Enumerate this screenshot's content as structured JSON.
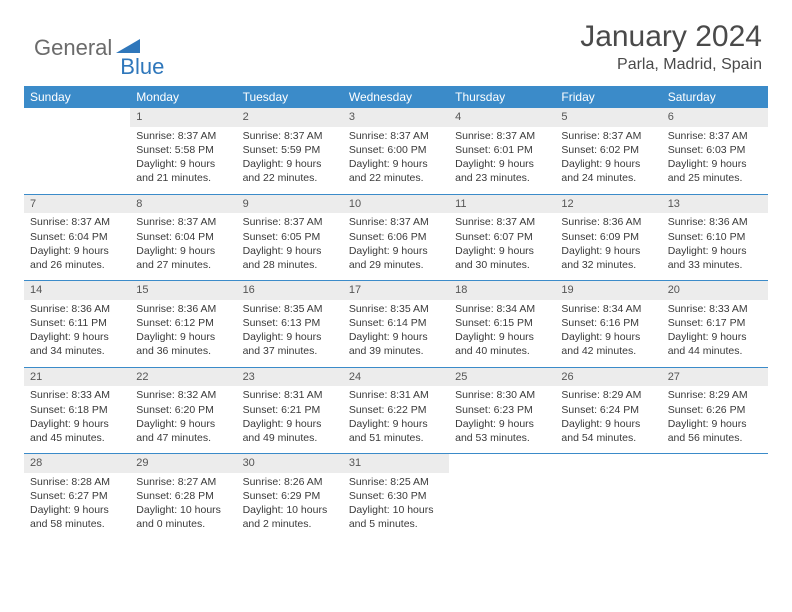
{
  "logo": {
    "general": "General",
    "blue": "Blue"
  },
  "title": "January 2024",
  "location": "Parla, Madrid, Spain",
  "weekdays": [
    "Sunday",
    "Monday",
    "Tuesday",
    "Wednesday",
    "Thursday",
    "Friday",
    "Saturday"
  ],
  "colors": {
    "header_bg": "#3b8bc9",
    "header_text": "#ffffff",
    "daynum_bg": "#ececec",
    "border": "#3b8bc9",
    "logo_gray": "#6b6b6b",
    "logo_blue": "#2f77bb",
    "text": "#3a3a3a"
  },
  "weeks": [
    [
      {
        "num": "",
        "sunrise": "",
        "sunset": "",
        "daylight": ""
      },
      {
        "num": "1",
        "sunrise": "Sunrise: 8:37 AM",
        "sunset": "Sunset: 5:58 PM",
        "daylight": "Daylight: 9 hours and 21 minutes."
      },
      {
        "num": "2",
        "sunrise": "Sunrise: 8:37 AM",
        "sunset": "Sunset: 5:59 PM",
        "daylight": "Daylight: 9 hours and 22 minutes."
      },
      {
        "num": "3",
        "sunrise": "Sunrise: 8:37 AM",
        "sunset": "Sunset: 6:00 PM",
        "daylight": "Daylight: 9 hours and 22 minutes."
      },
      {
        "num": "4",
        "sunrise": "Sunrise: 8:37 AM",
        "sunset": "Sunset: 6:01 PM",
        "daylight": "Daylight: 9 hours and 23 minutes."
      },
      {
        "num": "5",
        "sunrise": "Sunrise: 8:37 AM",
        "sunset": "Sunset: 6:02 PM",
        "daylight": "Daylight: 9 hours and 24 minutes."
      },
      {
        "num": "6",
        "sunrise": "Sunrise: 8:37 AM",
        "sunset": "Sunset: 6:03 PM",
        "daylight": "Daylight: 9 hours and 25 minutes."
      }
    ],
    [
      {
        "num": "7",
        "sunrise": "Sunrise: 8:37 AM",
        "sunset": "Sunset: 6:04 PM",
        "daylight": "Daylight: 9 hours and 26 minutes."
      },
      {
        "num": "8",
        "sunrise": "Sunrise: 8:37 AM",
        "sunset": "Sunset: 6:04 PM",
        "daylight": "Daylight: 9 hours and 27 minutes."
      },
      {
        "num": "9",
        "sunrise": "Sunrise: 8:37 AM",
        "sunset": "Sunset: 6:05 PM",
        "daylight": "Daylight: 9 hours and 28 minutes."
      },
      {
        "num": "10",
        "sunrise": "Sunrise: 8:37 AM",
        "sunset": "Sunset: 6:06 PM",
        "daylight": "Daylight: 9 hours and 29 minutes."
      },
      {
        "num": "11",
        "sunrise": "Sunrise: 8:37 AM",
        "sunset": "Sunset: 6:07 PM",
        "daylight": "Daylight: 9 hours and 30 minutes."
      },
      {
        "num": "12",
        "sunrise": "Sunrise: 8:36 AM",
        "sunset": "Sunset: 6:09 PM",
        "daylight": "Daylight: 9 hours and 32 minutes."
      },
      {
        "num": "13",
        "sunrise": "Sunrise: 8:36 AM",
        "sunset": "Sunset: 6:10 PM",
        "daylight": "Daylight: 9 hours and 33 minutes."
      }
    ],
    [
      {
        "num": "14",
        "sunrise": "Sunrise: 8:36 AM",
        "sunset": "Sunset: 6:11 PM",
        "daylight": "Daylight: 9 hours and 34 minutes."
      },
      {
        "num": "15",
        "sunrise": "Sunrise: 8:36 AM",
        "sunset": "Sunset: 6:12 PM",
        "daylight": "Daylight: 9 hours and 36 minutes."
      },
      {
        "num": "16",
        "sunrise": "Sunrise: 8:35 AM",
        "sunset": "Sunset: 6:13 PM",
        "daylight": "Daylight: 9 hours and 37 minutes."
      },
      {
        "num": "17",
        "sunrise": "Sunrise: 8:35 AM",
        "sunset": "Sunset: 6:14 PM",
        "daylight": "Daylight: 9 hours and 39 minutes."
      },
      {
        "num": "18",
        "sunrise": "Sunrise: 8:34 AM",
        "sunset": "Sunset: 6:15 PM",
        "daylight": "Daylight: 9 hours and 40 minutes."
      },
      {
        "num": "19",
        "sunrise": "Sunrise: 8:34 AM",
        "sunset": "Sunset: 6:16 PM",
        "daylight": "Daylight: 9 hours and 42 minutes."
      },
      {
        "num": "20",
        "sunrise": "Sunrise: 8:33 AM",
        "sunset": "Sunset: 6:17 PM",
        "daylight": "Daylight: 9 hours and 44 minutes."
      }
    ],
    [
      {
        "num": "21",
        "sunrise": "Sunrise: 8:33 AM",
        "sunset": "Sunset: 6:18 PM",
        "daylight": "Daylight: 9 hours and 45 minutes."
      },
      {
        "num": "22",
        "sunrise": "Sunrise: 8:32 AM",
        "sunset": "Sunset: 6:20 PM",
        "daylight": "Daylight: 9 hours and 47 minutes."
      },
      {
        "num": "23",
        "sunrise": "Sunrise: 8:31 AM",
        "sunset": "Sunset: 6:21 PM",
        "daylight": "Daylight: 9 hours and 49 minutes."
      },
      {
        "num": "24",
        "sunrise": "Sunrise: 8:31 AM",
        "sunset": "Sunset: 6:22 PM",
        "daylight": "Daylight: 9 hours and 51 minutes."
      },
      {
        "num": "25",
        "sunrise": "Sunrise: 8:30 AM",
        "sunset": "Sunset: 6:23 PM",
        "daylight": "Daylight: 9 hours and 53 minutes."
      },
      {
        "num": "26",
        "sunrise": "Sunrise: 8:29 AM",
        "sunset": "Sunset: 6:24 PM",
        "daylight": "Daylight: 9 hours and 54 minutes."
      },
      {
        "num": "27",
        "sunrise": "Sunrise: 8:29 AM",
        "sunset": "Sunset: 6:26 PM",
        "daylight": "Daylight: 9 hours and 56 minutes."
      }
    ],
    [
      {
        "num": "28",
        "sunrise": "Sunrise: 8:28 AM",
        "sunset": "Sunset: 6:27 PM",
        "daylight": "Daylight: 9 hours and 58 minutes."
      },
      {
        "num": "29",
        "sunrise": "Sunrise: 8:27 AM",
        "sunset": "Sunset: 6:28 PM",
        "daylight": "Daylight: 10 hours and 0 minutes."
      },
      {
        "num": "30",
        "sunrise": "Sunrise: 8:26 AM",
        "sunset": "Sunset: 6:29 PM",
        "daylight": "Daylight: 10 hours and 2 minutes."
      },
      {
        "num": "31",
        "sunrise": "Sunrise: 8:25 AM",
        "sunset": "Sunset: 6:30 PM",
        "daylight": "Daylight: 10 hours and 5 minutes."
      },
      {
        "num": "",
        "sunrise": "",
        "sunset": "",
        "daylight": ""
      },
      {
        "num": "",
        "sunrise": "",
        "sunset": "",
        "daylight": ""
      },
      {
        "num": "",
        "sunrise": "",
        "sunset": "",
        "daylight": ""
      }
    ]
  ]
}
